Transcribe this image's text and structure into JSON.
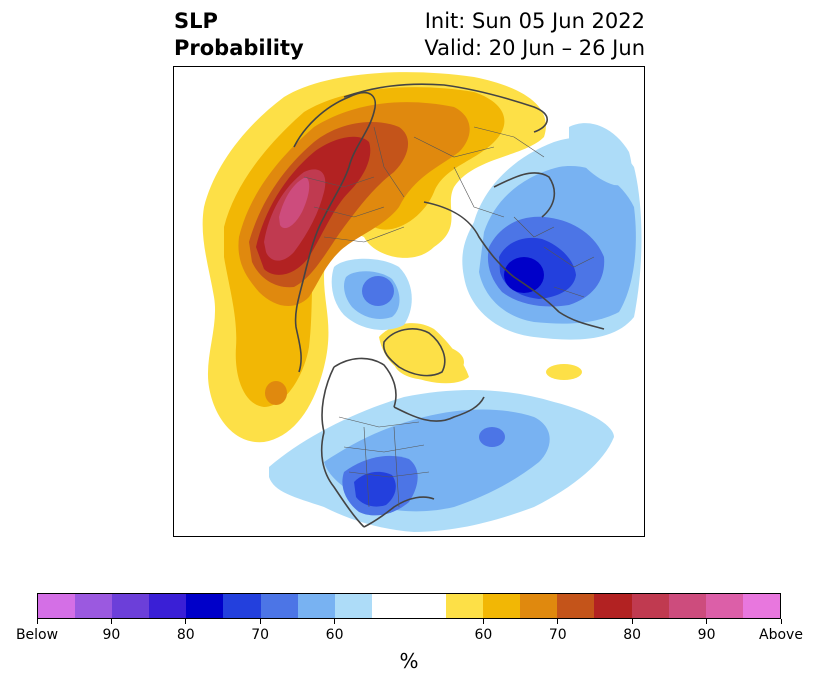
{
  "header": {
    "title_line1": "SLP",
    "title_line2": "Probability",
    "init_text": "Init: Sun 05 Jun 2022",
    "valid_text": "Valid: 20 Jun – 26 Jun"
  },
  "colorbar": {
    "unit_label": "%",
    "colors": [
      "#d46fe6",
      "#9b59e0",
      "#6c3fd9",
      "#3a1fd6",
      "#0000c9",
      "#2340dd",
      "#4c75e6",
      "#78b2f2",
      "#addcf8",
      "#ffffff",
      "#ffffff",
      "#fde047",
      "#f2b705",
      "#e0890e",
      "#c4541a",
      "#b22222",
      "#c03a50",
      "#cd4c7d",
      "#dc5fa8",
      "#e877de"
    ],
    "tick_labels": [
      "Below",
      "90",
      "80",
      "70",
      "60",
      "60",
      "70",
      "80",
      "90",
      "Above"
    ]
  },
  "map": {
    "projection": "polar-stereographic",
    "palette": {
      "above_60": "#fde047",
      "above_65": "#f2b705",
      "above_70": "#e0890e",
      "above_75": "#c4541a",
      "above_80": "#b22222",
      "above_85": "#c03a50",
      "above_90": "#cd4c7d",
      "below_60": "#addcf8",
      "below_65": "#78b2f2",
      "below_70": "#4c75e6",
      "below_75": "#2340dd",
      "below_80": "#0000c9",
      "coastline": "#444444"
    }
  }
}
